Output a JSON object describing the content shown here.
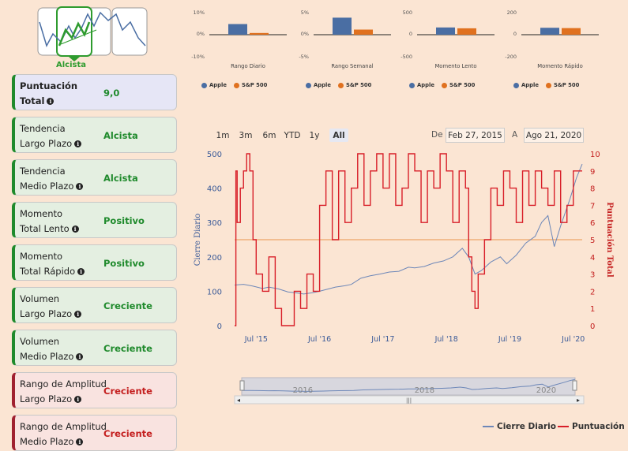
{
  "logo": {
    "label": "Alcista"
  },
  "cards": [
    {
      "line1": "Puntuación",
      "line2": "Total",
      "value": "9,0",
      "kind": "blue"
    },
    {
      "line1": "Tendencia",
      "line2": "Largo Plazo",
      "value": "Alcista",
      "kind": "green"
    },
    {
      "line1": "Tendencia",
      "line2": "Medio Plazo",
      "value": "Alcista",
      "kind": "green"
    },
    {
      "line1": "Momento",
      "line2": "Total Lento",
      "value": "Positivo",
      "kind": "green"
    },
    {
      "line1": "Momento",
      "line2": "Total Rápido",
      "value": "Positivo",
      "kind": "green"
    },
    {
      "line1": "Volumen",
      "line2": "Largo Plazo",
      "value": "Creciente",
      "kind": "green"
    },
    {
      "line1": "Volumen",
      "line2": "Medio Plazo",
      "value": "Creciente",
      "kind": "green"
    },
    {
      "line1": "Rango de Amplitud",
      "line2": "Largo Plazo",
      "value": "Creciente",
      "kind": "red"
    },
    {
      "line1": "Rango de Amplitud",
      "line2": "Medio Plazo",
      "value": "Creciente",
      "kind": "red"
    }
  ],
  "colors": {
    "apple": "#4a6ea3",
    "sp500": "#e0711f",
    "score": "#d81e28",
    "close": "#6d87b8",
    "green": "#1f8a2c"
  },
  "mini_legend": {
    "apple": "Apple",
    "sp500": "S&P 500"
  },
  "range_buttons": [
    "1m",
    "3m",
    "6m",
    "YTD",
    "1y",
    "All"
  ],
  "active_range": "All",
  "date_range": {
    "from_label": "De",
    "from": "Feb 27, 2015",
    "to_label": "A",
    "to": "Ago 21, 2020"
  },
  "navigator_years": [
    "2016",
    "2018",
    "2020"
  ],
  "main_legend": {
    "close": "Cierre Diario",
    "score": "Puntuación"
  },
  "chart_data": [
    {
      "type": "bar",
      "caption": "Rango Diario",
      "categories": [
        "Apple",
        "S&P 500"
      ],
      "values": [
        5,
        0.8
      ],
      "ylim": [
        -10,
        10
      ],
      "ticks": [
        "10%",
        "0%",
        "-10%"
      ]
    },
    {
      "type": "bar",
      "caption": "Rango Semanal",
      "categories": [
        "Apple",
        "S&P 500"
      ],
      "values": [
        4,
        1.2
      ],
      "ylim": [
        -5,
        5
      ],
      "ticks": [
        "5%",
        "0%",
        "-5%"
      ]
    },
    {
      "type": "bar",
      "caption": "Momento Lento",
      "categories": [
        "Apple",
        "S&P 500"
      ],
      "values": [
        170,
        150
      ],
      "ylim": [
        -500,
        500
      ],
      "ticks": [
        "500",
        "0",
        "-500"
      ]
    },
    {
      "type": "bar",
      "caption": "Momento Rápido",
      "categories": [
        "Apple",
        "S&P 500"
      ],
      "values": [
        65,
        62
      ],
      "ylim": [
        -200,
        200
      ],
      "ticks": [
        "200",
        "0",
        "-200"
      ]
    },
    {
      "type": "line",
      "ylabel": "Cierre Diario",
      "y2label": "Puntuación Total",
      "ylim": [
        0,
        500
      ],
      "y2lim": [
        0,
        10
      ],
      "yticks": [
        0,
        100,
        200,
        300,
        400,
        500
      ],
      "y2ticks": [
        0,
        1,
        2,
        3,
        4,
        5,
        6,
        7,
        8,
        9,
        10
      ],
      "xticks": [
        {
          "label": "Jul '15",
          "x": 2015.5
        },
        {
          "label": "Jul '16",
          "x": 2016.5
        },
        {
          "label": "Jul '17",
          "x": 2017.5
        },
        {
          "label": "Jul '18",
          "x": 2018.5
        },
        {
          "label": "Jul '19",
          "x": 2019.5
        },
        {
          "label": "Jul '20",
          "x": 2020.5
        }
      ],
      "xlim": [
        2015.16,
        2020.64
      ],
      "reference_line": 250,
      "series": [
        {
          "name": "Cierre Diario",
          "x": [
            2015.16,
            2015.3,
            2015.45,
            2015.6,
            2015.7,
            2015.85,
            2016.0,
            2016.1,
            2016.25,
            2016.4,
            2016.5,
            2016.6,
            2016.75,
            2016.9,
            2017.0,
            2017.15,
            2017.3,
            2017.45,
            2017.6,
            2017.75,
            2017.9,
            2018.0,
            2018.15,
            2018.3,
            2018.45,
            2018.6,
            2018.75,
            2018.85,
            2018.95,
            2019.05,
            2019.2,
            2019.35,
            2019.45,
            2019.6,
            2019.75,
            2019.9,
            2020.0,
            2020.1,
            2020.2,
            2020.3,
            2020.45,
            2020.55,
            2020.64
          ],
          "values": [
            118,
            120,
            115,
            108,
            112,
            107,
            98,
            96,
            92,
            96,
            100,
            105,
            112,
            116,
            120,
            138,
            145,
            150,
            156,
            158,
            170,
            168,
            172,
            182,
            188,
            200,
            225,
            200,
            150,
            160,
            185,
            200,
            180,
            205,
            240,
            260,
            300,
            320,
            230,
            290,
            370,
            430,
            470
          ]
        },
        {
          "name": "Puntuación",
          "x": [
            2015.16,
            2015.18,
            2015.2,
            2015.25,
            2015.3,
            2015.35,
            2015.4,
            2015.45,
            2015.5,
            2015.6,
            2015.7,
            2015.8,
            2015.9,
            2016.0,
            2016.1,
            2016.2,
            2016.3,
            2016.4,
            2016.5,
            2016.6,
            2016.7,
            2016.8,
            2016.9,
            2017.0,
            2017.1,
            2017.2,
            2017.3,
            2017.4,
            2017.5,
            2017.6,
            2017.7,
            2017.8,
            2017.9,
            2018.0,
            2018.1,
            2018.2,
            2018.3,
            2018.4,
            2018.5,
            2018.6,
            2018.7,
            2018.8,
            2018.85,
            2018.9,
            2018.95,
            2019.0,
            2019.1,
            2019.2,
            2019.3,
            2019.4,
            2019.5,
            2019.6,
            2019.7,
            2019.8,
            2019.9,
            2020.0,
            2020.1,
            2020.2,
            2020.3,
            2020.4,
            2020.5,
            2020.64
          ],
          "values": [
            0,
            9,
            6,
            8,
            9,
            10,
            9,
            5,
            3,
            2,
            4,
            1,
            0,
            0,
            2,
            1,
            3,
            2,
            7,
            9,
            5,
            9,
            6,
            8,
            10,
            7,
            9,
            10,
            8,
            10,
            7,
            8,
            10,
            9,
            6,
            9,
            8,
            10,
            9,
            6,
            9,
            8,
            4,
            2,
            1,
            3,
            5,
            8,
            7,
            9,
            8,
            6,
            9,
            7,
            9,
            8,
            7,
            9,
            6,
            7,
            9,
            9
          ]
        }
      ]
    }
  ]
}
